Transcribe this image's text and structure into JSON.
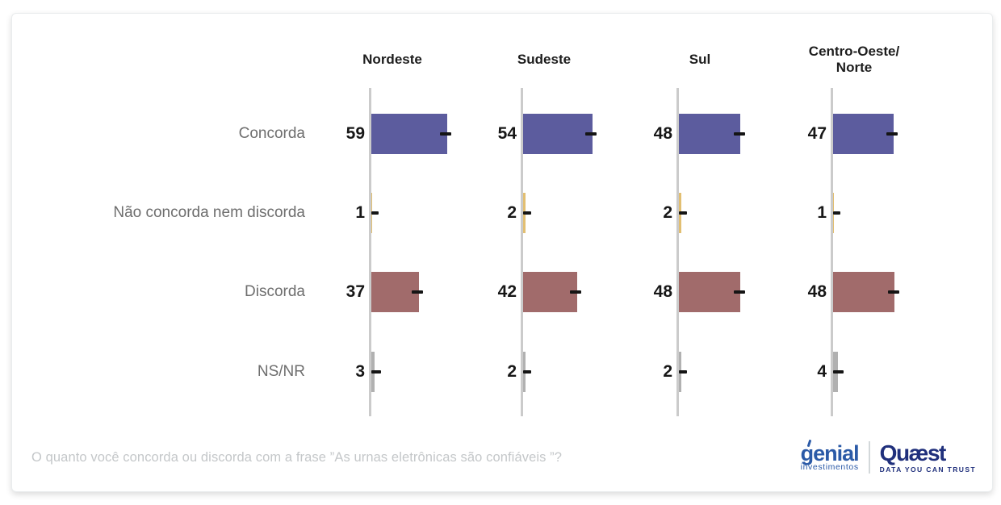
{
  "chart_data": {
    "type": "bar",
    "orientation": "horizontal",
    "title": "",
    "regions": [
      {
        "label_lines": [
          "Nordeste"
        ],
        "values": [
          59,
          1,
          37,
          3
        ]
      },
      {
        "label_lines": [
          "Sudeste"
        ],
        "values": [
          54,
          2,
          42,
          2
        ]
      },
      {
        "label_lines": [
          "Sul"
        ],
        "values": [
          48,
          2,
          48,
          2
        ]
      },
      {
        "label_lines": [
          "Centro-Oeste/",
          "Norte"
        ],
        "values": [
          47,
          1,
          48,
          4
        ]
      }
    ],
    "categories": [
      {
        "label": "Concorda",
        "color": "#5c5c9e"
      },
      {
        "label": "Não concorda nem discorda",
        "color": "#e2bf72"
      },
      {
        "label": "Discorda",
        "color": "#a16b6b"
      },
      {
        "label": "NS/NR",
        "color": "#b1b1b1"
      }
    ],
    "value_unit": "percent",
    "xlim": [
      0,
      100
    ],
    "gridlines": false,
    "legend_position": "none",
    "axis_color": "#cbcbcb",
    "error_dash_color": "#151515"
  },
  "footer": {
    "question": "O quanto você concorda ou discorda com a frase ”As urnas eletrônicas são confiáveis ”?"
  },
  "branding": {
    "genial": {
      "name": "genial",
      "tagline": "investimentos",
      "color": "#2b5aa7"
    },
    "quaest": {
      "name": "Quæst",
      "tagline": "DATA YOU CAN TRUST",
      "color": "#20307c"
    }
  }
}
